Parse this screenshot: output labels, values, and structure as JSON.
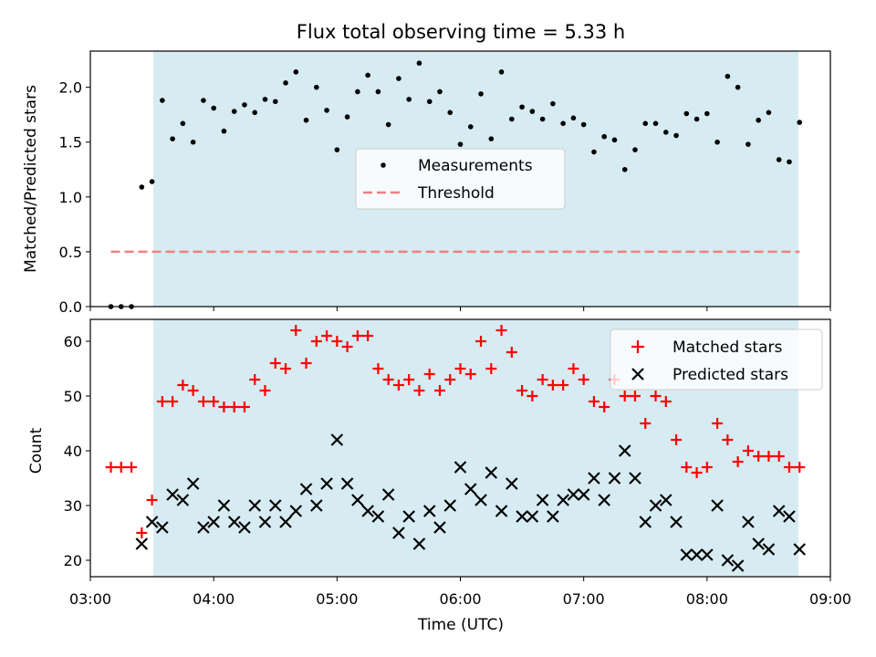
{
  "chart_data": [
    {
      "type": "scatter",
      "title": "Flux total observing time = 5.33 h",
      "xlabel": "",
      "ylabel": "Matched/Predicted stars",
      "xlim": [
        "03:00",
        "09:00"
      ],
      "ylim": [
        0,
        2.33
      ],
      "yticks": [
        "0.0",
        "0.5",
        "1.0",
        "1.5",
        "2.0"
      ],
      "observing_window": {
        "start": "03:25",
        "end": "08:45",
        "color": "#add8e6"
      },
      "legend_position": "center",
      "legend": [
        "Measurements",
        "Threshold"
      ],
      "threshold": {
        "name": "Threshold",
        "value": 0.5,
        "x_start": "03:10",
        "x_end": "08:45",
        "color": "#f08080"
      },
      "series": [
        {
          "name": "Measurements",
          "color": "#000000",
          "points": [
            [
              "03:10",
              0
            ],
            [
              "03:15",
              0
            ],
            [
              "03:20",
              0
            ],
            [
              "03:25",
              1.09
            ],
            [
              "03:30",
              1.14
            ],
            [
              "03:35",
              1.88
            ],
            [
              "03:40",
              1.53
            ],
            [
              "03:45",
              1.67
            ],
            [
              "03:50",
              1.5
            ],
            [
              "03:55",
              1.88
            ],
            [
              "04:00",
              1.81
            ],
            [
              "04:05",
              1.6
            ],
            [
              "04:10",
              1.78
            ],
            [
              "04:15",
              1.84
            ],
            [
              "04:20",
              1.77
            ],
            [
              "04:25",
              1.89
            ],
            [
              "04:30",
              1.87
            ],
            [
              "04:35",
              2.04
            ],
            [
              "04:40",
              2.14
            ],
            [
              "04:45",
              1.7
            ],
            [
              "04:50",
              2.0
            ],
            [
              "04:55",
              1.79
            ],
            [
              "05:00",
              1.43
            ],
            [
              "05:05",
              1.73
            ],
            [
              "05:10",
              1.96
            ],
            [
              "05:15",
              2.11
            ],
            [
              "05:20",
              1.96
            ],
            [
              "05:25",
              1.66
            ],
            [
              "05:30",
              2.08
            ],
            [
              "05:35",
              1.89
            ],
            [
              "05:40",
              2.22
            ],
            [
              "05:45",
              1.87
            ],
            [
              "05:50",
              1.96
            ],
            [
              "05:55",
              1.77
            ],
            [
              "06:00",
              1.48
            ],
            [
              "06:05",
              1.64
            ],
            [
              "06:10",
              1.94
            ],
            [
              "06:15",
              1.53
            ],
            [
              "06:20",
              2.14
            ],
            [
              "06:25",
              1.71
            ],
            [
              "06:30",
              1.82
            ],
            [
              "06:35",
              1.78
            ],
            [
              "06:40",
              1.71
            ],
            [
              "06:45",
              1.85
            ],
            [
              "06:50",
              1.67
            ],
            [
              "06:55",
              1.72
            ],
            [
              "07:00",
              1.66
            ],
            [
              "07:05",
              1.41
            ],
            [
              "07:10",
              1.55
            ],
            [
              "07:15",
              1.52
            ],
            [
              "07:20",
              1.25
            ],
            [
              "07:25",
              1.43
            ],
            [
              "07:30",
              1.67
            ],
            [
              "07:35",
              1.67
            ],
            [
              "07:40",
              1.59
            ],
            [
              "07:45",
              1.56
            ],
            [
              "07:50",
              1.76
            ],
            [
              "07:55",
              1.71
            ],
            [
              "08:00",
              1.76
            ],
            [
              "08:05",
              1.5
            ],
            [
              "08:10",
              2.1
            ],
            [
              "08:15",
              2.0
            ],
            [
              "08:20",
              1.48
            ],
            [
              "08:25",
              1.7
            ],
            [
              "08:30",
              1.77
            ],
            [
              "08:35",
              1.34
            ],
            [
              "08:40",
              1.32
            ],
            [
              "08:45",
              1.68
            ]
          ]
        }
      ]
    },
    {
      "type": "scatter",
      "title": "",
      "xlabel": "Time (UTC)",
      "ylabel": "Count",
      "xlim": [
        "03:00",
        "09:00"
      ],
      "ylim": [
        17,
        64
      ],
      "xticks": [
        "03:00",
        "04:00",
        "05:00",
        "06:00",
        "07:00",
        "08:00",
        "09:00"
      ],
      "yticks": [
        "20",
        "30",
        "40",
        "50",
        "60"
      ],
      "observing_window": {
        "start": "03:25",
        "end": "08:45",
        "color": "#add8e6"
      },
      "legend_position": "top-right",
      "legend": [
        "Matched stars",
        "Predicted stars"
      ],
      "series": [
        {
          "name": "Matched stars",
          "marker": "+",
          "color": "#ff0000",
          "points": [
            [
              "03:10",
              37
            ],
            [
              "03:15",
              37
            ],
            [
              "03:20",
              37
            ],
            [
              "03:25",
              25
            ],
            [
              "03:30",
              31
            ],
            [
              "03:35",
              49
            ],
            [
              "03:40",
              49
            ],
            [
              "03:45",
              52
            ],
            [
              "03:50",
              51
            ],
            [
              "03:55",
              49
            ],
            [
              "04:00",
              49
            ],
            [
              "04:05",
              48
            ],
            [
              "04:10",
              48
            ],
            [
              "04:15",
              48
            ],
            [
              "04:20",
              53
            ],
            [
              "04:25",
              51
            ],
            [
              "04:30",
              56
            ],
            [
              "04:35",
              55
            ],
            [
              "04:40",
              62
            ],
            [
              "04:45",
              56
            ],
            [
              "04:50",
              60
            ],
            [
              "04:55",
              61
            ],
            [
              "05:00",
              60
            ],
            [
              "05:05",
              59
            ],
            [
              "05:10",
              61
            ],
            [
              "05:15",
              61
            ],
            [
              "05:20",
              55
            ],
            [
              "05:25",
              53
            ],
            [
              "05:30",
              52
            ],
            [
              "05:35",
              53
            ],
            [
              "05:40",
              51
            ],
            [
              "05:45",
              54
            ],
            [
              "05:50",
              51
            ],
            [
              "05:55",
              53
            ],
            [
              "06:00",
              55
            ],
            [
              "06:05",
              54
            ],
            [
              "06:10",
              60
            ],
            [
              "06:15",
              55
            ],
            [
              "06:20",
              62
            ],
            [
              "06:25",
              58
            ],
            [
              "06:30",
              51
            ],
            [
              "06:35",
              50
            ],
            [
              "06:40",
              53
            ],
            [
              "06:45",
              52
            ],
            [
              "06:50",
              52
            ],
            [
              "06:55",
              55
            ],
            [
              "07:00",
              53
            ],
            [
              "07:05",
              49
            ],
            [
              "07:10",
              48
            ],
            [
              "07:15",
              53
            ],
            [
              "07:20",
              50
            ],
            [
              "07:25",
              50
            ],
            [
              "07:30",
              45
            ],
            [
              "07:35",
              50
            ],
            [
              "07:40",
              49
            ],
            [
              "07:45",
              42
            ],
            [
              "07:50",
              37
            ],
            [
              "07:55",
              36
            ],
            [
              "08:00",
              37
            ],
            [
              "08:05",
              45
            ],
            [
              "08:10",
              42
            ],
            [
              "08:15",
              38
            ],
            [
              "08:20",
              40
            ],
            [
              "08:25",
              39
            ],
            [
              "08:30",
              39
            ],
            [
              "08:35",
              39
            ],
            [
              "08:40",
              37
            ],
            [
              "08:45",
              37
            ]
          ]
        },
        {
          "name": "Predicted stars",
          "marker": "x",
          "color": "#000000",
          "points": [
            [
              "03:25",
              23
            ],
            [
              "03:30",
              27
            ],
            [
              "03:35",
              26
            ],
            [
              "03:40",
              32
            ],
            [
              "03:45",
              31
            ],
            [
              "03:50",
              34
            ],
            [
              "03:55",
              26
            ],
            [
              "04:00",
              27
            ],
            [
              "04:05",
              30
            ],
            [
              "04:10",
              27
            ],
            [
              "04:15",
              26
            ],
            [
              "04:20",
              30
            ],
            [
              "04:25",
              27
            ],
            [
              "04:30",
              30
            ],
            [
              "04:35",
              27
            ],
            [
              "04:40",
              29
            ],
            [
              "04:45",
              33
            ],
            [
              "04:50",
              30
            ],
            [
              "04:55",
              34
            ],
            [
              "05:00",
              42
            ],
            [
              "05:05",
              34
            ],
            [
              "05:10",
              31
            ],
            [
              "05:15",
              29
            ],
            [
              "05:20",
              28
            ],
            [
              "05:25",
              32
            ],
            [
              "05:30",
              25
            ],
            [
              "05:35",
              28
            ],
            [
              "05:40",
              23
            ],
            [
              "05:45",
              29
            ],
            [
              "05:50",
              26
            ],
            [
              "05:55",
              30
            ],
            [
              "06:00",
              37
            ],
            [
              "06:05",
              33
            ],
            [
              "06:10",
              31
            ],
            [
              "06:15",
              36
            ],
            [
              "06:20",
              29
            ],
            [
              "06:25",
              34
            ],
            [
              "06:30",
              28
            ],
            [
              "06:35",
              28
            ],
            [
              "06:40",
              31
            ],
            [
              "06:45",
              28
            ],
            [
              "06:50",
              31
            ],
            [
              "06:55",
              32
            ],
            [
              "07:00",
              32
            ],
            [
              "07:05",
              35
            ],
            [
              "07:10",
              31
            ],
            [
              "07:15",
              35
            ],
            [
              "07:20",
              40
            ],
            [
              "07:25",
              35
            ],
            [
              "07:30",
              27
            ],
            [
              "07:35",
              30
            ],
            [
              "07:40",
              31
            ],
            [
              "07:45",
              27
            ],
            [
              "07:50",
              21
            ],
            [
              "07:55",
              21
            ],
            [
              "08:00",
              21
            ],
            [
              "08:05",
              30
            ],
            [
              "08:10",
              20
            ],
            [
              "08:15",
              19
            ],
            [
              "08:20",
              27
            ],
            [
              "08:25",
              23
            ],
            [
              "08:30",
              22
            ],
            [
              "08:35",
              29
            ],
            [
              "08:40",
              28
            ],
            [
              "08:45",
              22
            ]
          ]
        }
      ]
    }
  ]
}
